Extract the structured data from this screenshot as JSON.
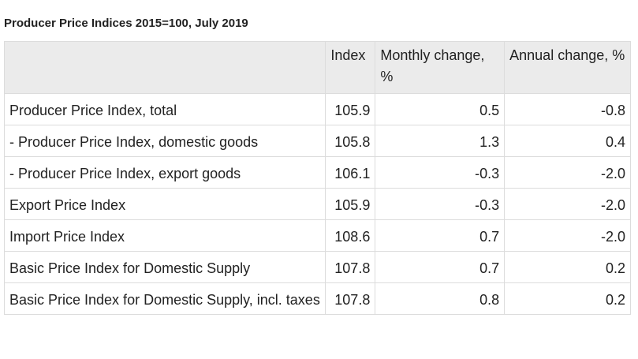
{
  "header": {
    "title": "Producer Price Indices 2015=100, July 2019"
  },
  "table": {
    "columns": [
      "",
      "Index",
      "Monthly change, %",
      "Annual change, %"
    ],
    "rows": [
      [
        "Producer Price Index, total",
        "105.9",
        "0.5",
        "-0.8"
      ],
      [
        "- Producer Price Index, domestic goods",
        "105.8",
        "1.3",
        "0.4"
      ],
      [
        "- Producer Price Index, export goods",
        "106.1",
        "-0.3",
        "-2.0"
      ],
      [
        "Export Price Index",
        "105.9",
        "-0.3",
        "-2.0"
      ],
      [
        "Import Price Index",
        "108.6",
        "0.7",
        "-2.0"
      ],
      [
        "Basic Price Index for Domestic Supply",
        "107.8",
        "0.7",
        "0.2"
      ],
      [
        "Basic Price Index for Domestic Supply, incl. taxes",
        "107.8",
        "0.8",
        "0.2"
      ]
    ]
  }
}
